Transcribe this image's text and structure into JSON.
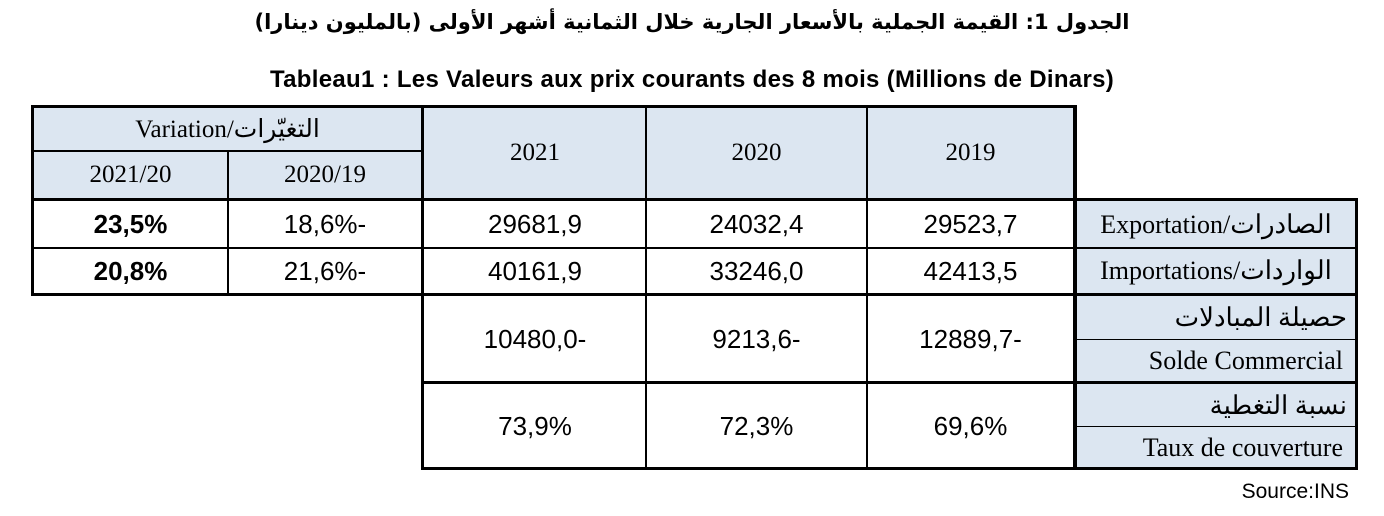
{
  "title_ar": "الجدول 1: القيمة الجملية بالأسعار الجارية خلال الثمانية أشهر الأولى (بالمليون دينارا)",
  "title_fr": "Tableau1 : Les Valeurs aux prix courants des 8 mois (Millions de Dinars)",
  "header": {
    "variation": "Variation/التغيّرات",
    "var_2021_20": "2021/20",
    "var_2020_19": "2020/19",
    "y2021": "2021",
    "y2020": "2020",
    "y2019": "2019"
  },
  "rows": [
    {
      "label": "Exportation/الصادرات",
      "var_2021_20": "23,5%",
      "var_2020_19": "18,6%-",
      "v2021": "29681,9",
      "v2020": "24032,4",
      "v2019": "29523,7"
    },
    {
      "label": "Importations/الواردات",
      "var_2021_20": "20,8%",
      "var_2020_19": "21,6%-",
      "v2021": "40161,9",
      "v2020": "33246,0",
      "v2019": "42413,5"
    }
  ],
  "balance": {
    "label_ar": "حصيلة المبادلات",
    "label_fr": "Solde Commercial",
    "v2021": "10480,0-",
    "v2020": "9213,6-",
    "v2019": "12889,7-"
  },
  "coverage": {
    "label_ar": "نسبة التغطية",
    "label_fr": "Taux de couverture",
    "v2021": "73,9%",
    "v2020": "72,3%",
    "v2019": "69,6%"
  },
  "source": "Source:INS",
  "colors": {
    "header_bg": "#dce6f1",
    "border": "#000000"
  }
}
